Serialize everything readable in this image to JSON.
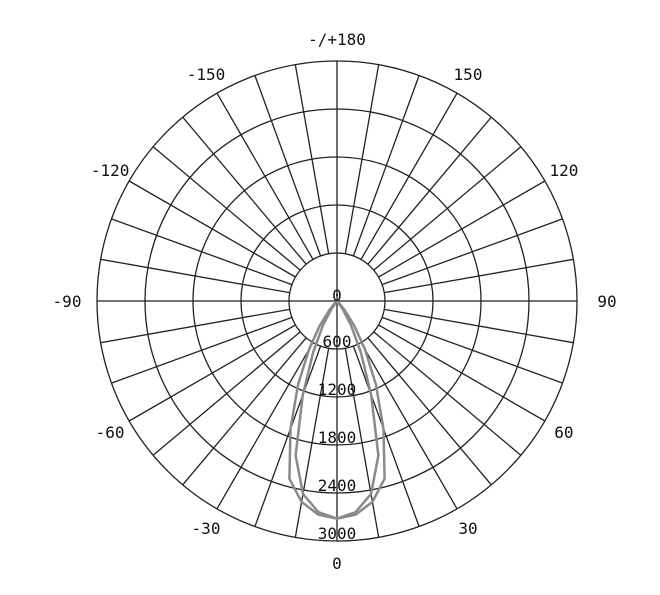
{
  "chart_data": {
    "type": "polar-line",
    "title": "",
    "angle_zero": "bottom",
    "angle_direction": "clockwise-right",
    "angle_step_deg": 10,
    "angle_labels": [
      {
        "angle": 0,
        "text": "0"
      },
      {
        "angle": 30,
        "text": "30"
      },
      {
        "angle": 60,
        "text": "60"
      },
      {
        "angle": 90,
        "text": "90"
      },
      {
        "angle": 120,
        "text": "120"
      },
      {
        "angle": 150,
        "text": "150"
      },
      {
        "angle": 180,
        "text": "-/+180"
      },
      {
        "angle": -150,
        "text": "-150"
      },
      {
        "angle": -120,
        "text": "-120"
      },
      {
        "angle": -90,
        "text": "-90"
      },
      {
        "angle": -60,
        "text": "-60"
      },
      {
        "angle": -30,
        "text": "-30"
      }
    ],
    "radial_ticks": [
      0,
      600,
      1200,
      1800,
      2400,
      3000
    ],
    "radial_tick_labels": [
      "0",
      "600",
      "1200",
      "1800",
      "2400",
      "3000"
    ],
    "rlim": [
      0,
      3000
    ],
    "grid": true,
    "series_color": "#8a8a8a",
    "series": [
      {
        "angles": [
          -50,
          -45,
          -40,
          -35,
          -30,
          -25,
          -20,
          -15,
          -10,
          -5,
          0,
          5,
          10,
          15,
          20,
          25,
          30,
          35,
          40,
          45,
          50
        ],
        "values": [
          0,
          40,
          150,
          380,
          700,
          1150,
          1700,
          2300,
          2550,
          2680,
          2720,
          2680,
          2550,
          2300,
          1700,
          1150,
          700,
          380,
          150,
          40,
          0
        ]
      },
      {
        "angles": [
          -40,
          -35,
          -30,
          -25,
          -20,
          -15,
          -10,
          -5,
          0,
          5,
          10,
          15,
          20,
          25,
          30,
          35,
          40
        ],
        "values": [
          0,
          120,
          350,
          700,
          1250,
          2000,
          2450,
          2650,
          2720,
          2650,
          2450,
          2000,
          1250,
          700,
          350,
          120,
          0
        ]
      }
    ]
  }
}
